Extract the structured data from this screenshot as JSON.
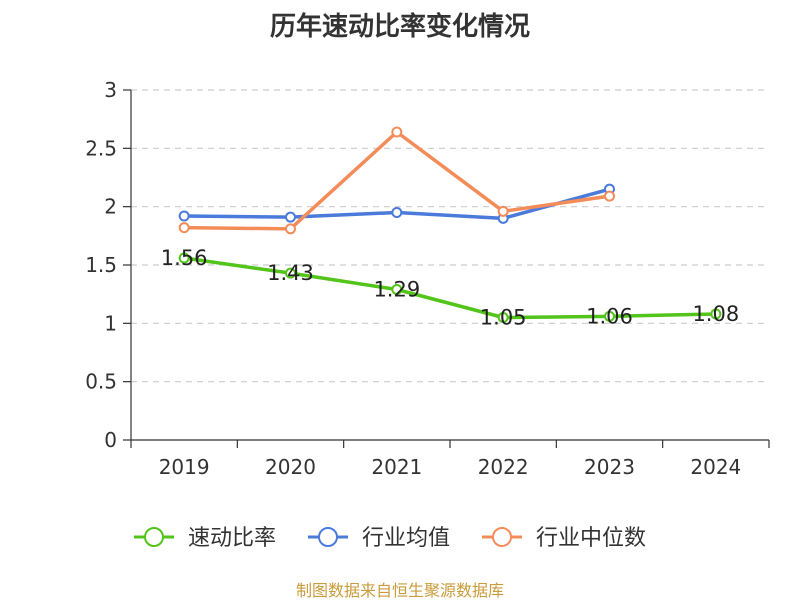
{
  "chart_data": {
    "type": "line",
    "title": "历年速动比率变化情况",
    "categories": [
      "2019",
      "2020",
      "2021",
      "2022",
      "2023",
      "2024"
    ],
    "y_ticks": [
      "0",
      "0.5",
      "1",
      "1.5",
      "2",
      "2.5",
      "3"
    ],
    "ylim": [
      0,
      3
    ],
    "grid": "horizontal dashed",
    "legend_position": "bottom",
    "series": [
      {
        "name": "速动比率",
        "color": "#52c41a",
        "values": [
          1.56,
          1.43,
          1.29,
          1.05,
          1.06,
          1.08
        ],
        "data_labels": [
          "1.56",
          "1.43",
          "1.29",
          "1.05",
          "1.06",
          "1.08"
        ]
      },
      {
        "name": "行业均值",
        "color": "#4a7bdb",
        "values": [
          1.92,
          1.91,
          1.95,
          1.9,
          2.15,
          null
        ]
      },
      {
        "name": "行业中位数",
        "color": "#f48c5a",
        "values": [
          1.82,
          1.81,
          2.64,
          1.96,
          2.09,
          null
        ]
      }
    ]
  },
  "source_note": "制图数据来自恒生聚源数据库"
}
